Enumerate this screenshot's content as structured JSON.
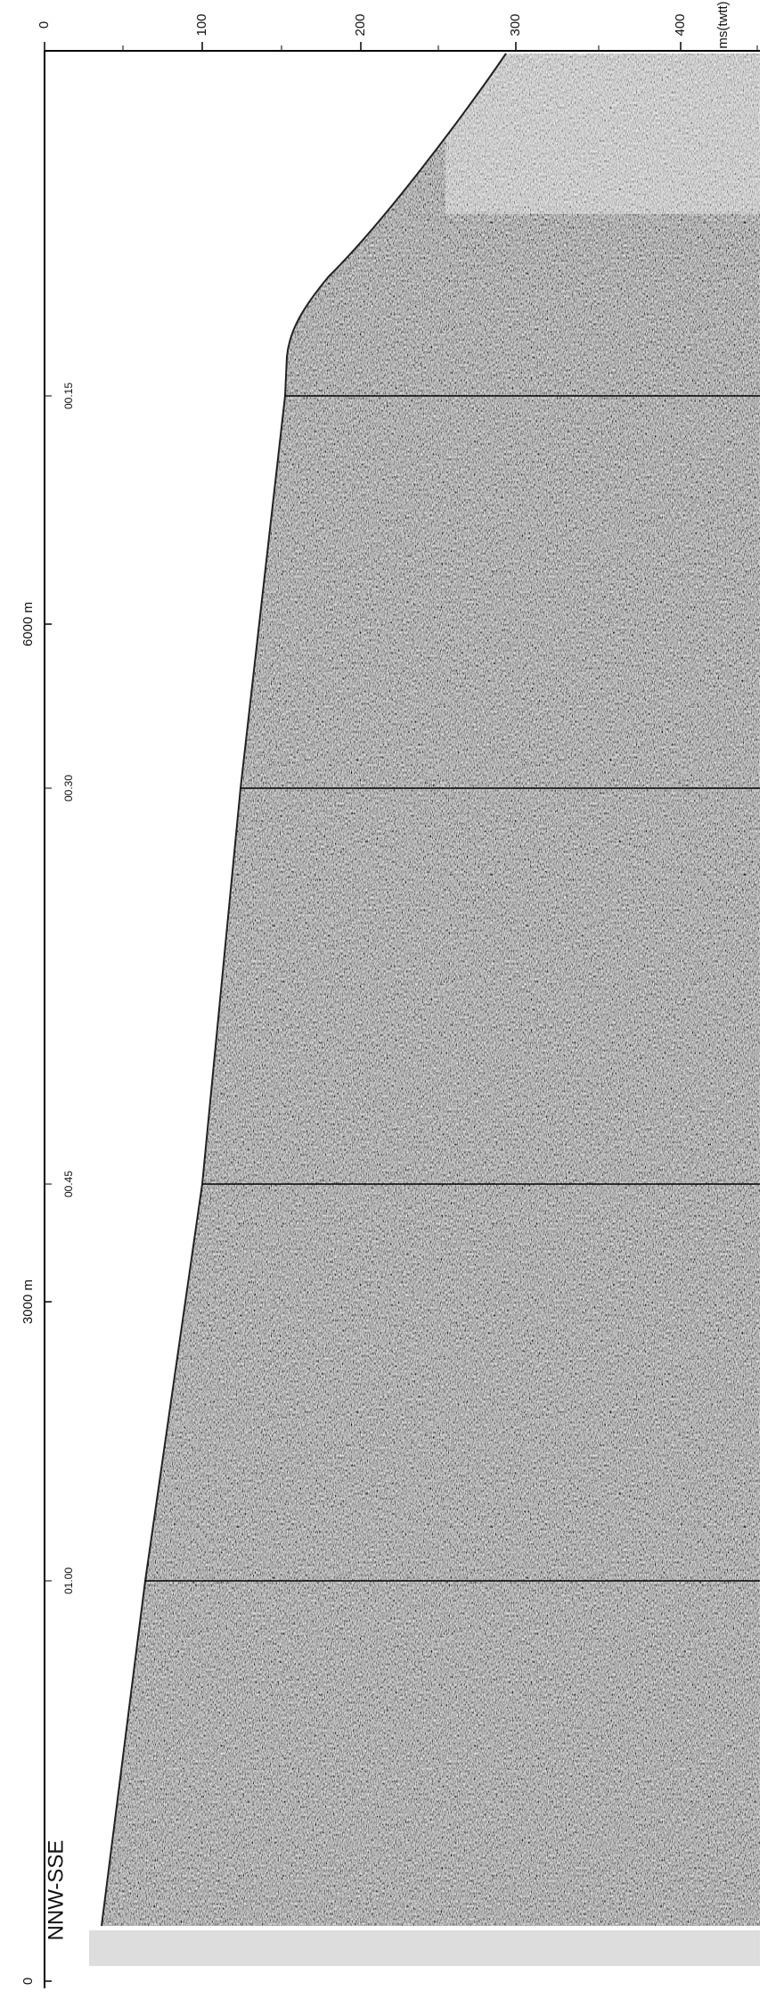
{
  "axis_top": {
    "ticks": [
      "0",
      "100",
      "200",
      "300",
      "400"
    ],
    "unit": "ms(twtt)"
  },
  "axis_left": {
    "labels": [
      "6000 m",
      "3000 m",
      "0"
    ]
  },
  "time_marks": [
    "00.15",
    "00.30",
    "00.45",
    "01.00"
  ],
  "direction": "NNW-SSE"
}
